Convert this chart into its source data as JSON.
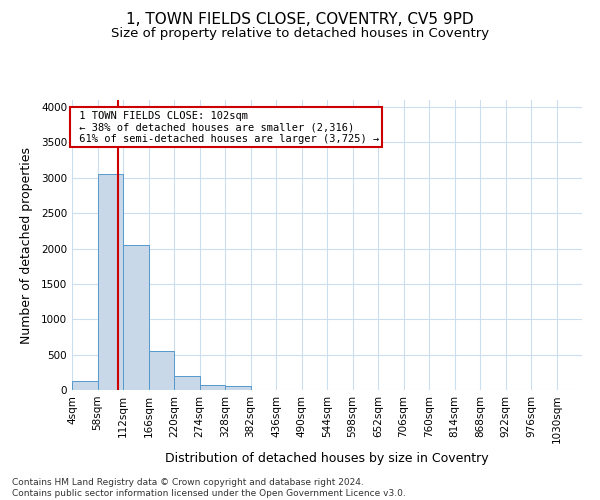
{
  "title": "1, TOWN FIELDS CLOSE, COVENTRY, CV5 9PD",
  "subtitle": "Size of property relative to detached houses in Coventry",
  "xlabel": "Distribution of detached houses by size in Coventry",
  "ylabel": "Number of detached properties",
  "footnote": "Contains HM Land Registry data © Crown copyright and database right 2024.\nContains public sector information licensed under the Open Government Licence v3.0.",
  "bin_edges": [
    4,
    58,
    112,
    166,
    220,
    274,
    328,
    382,
    436,
    490,
    544,
    598,
    652,
    706,
    760,
    814,
    868,
    922,
    976,
    1030,
    1084
  ],
  "bar_values": [
    130,
    3050,
    2050,
    550,
    200,
    75,
    55,
    0,
    0,
    0,
    0,
    0,
    0,
    0,
    0,
    0,
    0,
    0,
    0,
    0
  ],
  "bar_color": "#c8d8e8",
  "bar_edge_color": "#5599cc",
  "grid_color": "#ccddee",
  "property_size": 102,
  "property_label": "1 TOWN FIELDS CLOSE: 102sqm",
  "pct_smaller": 38,
  "n_smaller": 2316,
  "pct_larger": 61,
  "n_larger": 3725,
  "vline_color": "#cc0000",
  "annotation_box_color": "#cc0000",
  "ylim": [
    0,
    4100
  ],
  "yticks": [
    0,
    500,
    1000,
    1500,
    2000,
    2500,
    3000,
    3500,
    4000
  ],
  "title_fontsize": 11,
  "subtitle_fontsize": 9.5,
  "axis_label_fontsize": 9,
  "tick_fontsize": 7.5,
  "footnote_fontsize": 6.5,
  "annotation_fontsize": 7.5
}
